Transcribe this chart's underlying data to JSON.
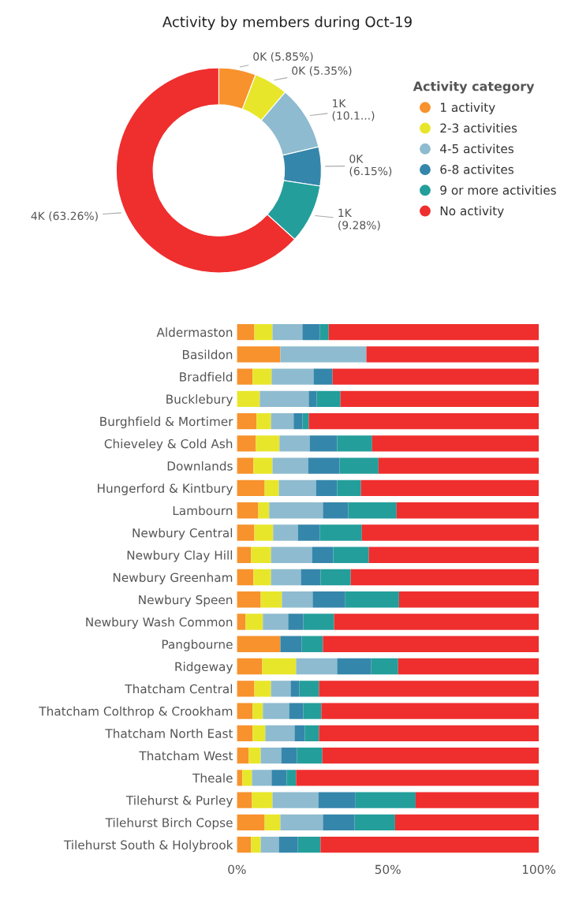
{
  "chart_data": [
    {
      "type": "donut",
      "title": "Activity by members during Oct-19",
      "legend_title": "Activity category",
      "legend": "right",
      "categories": [
        "1 activity",
        "2-3 activities",
        "4-5 activites",
        "6-8 activites",
        "9 or more activities",
        "No activity"
      ],
      "values": [
        5.85,
        5.35,
        10.11,
        6.15,
        9.28,
        63.26
      ],
      "colors": [
        "#f7922d",
        "#e8e62a",
        "#8ebbcf",
        "#3586ab",
        "#239e9b",
        "#ef2e2e"
      ],
      "value_labels": [
        "0K (5.85%)",
        "0K (5.35%)",
        "1K (10.1...)",
        "0K (6.15%)",
        "1K (9.28%)",
        "4K (63.26%)"
      ]
    },
    {
      "type": "bar",
      "orientation": "horizontal",
      "stacked": true,
      "categories": [
        "Aldermaston",
        "Basildon",
        "Bradfield",
        "Bucklebury",
        "Burghfield & Mortimer",
        "Chieveley & Cold Ash",
        "Downlands",
        "Hungerford & Kintbury",
        "Lambourn",
        "Newbury Central",
        "Newbury Clay Hill",
        "Newbury Greenham",
        "Newbury Speen",
        "Newbury Wash Common",
        "Pangbourne",
        "Ridgeway",
        "Thatcham Central",
        "Thatcham Colthrop & Crookham",
        "Thatcham North East",
        "Thatcham West",
        "Theale",
        "Tilehurst & Purley",
        "Tilehurst Birch Copse",
        "Tilehurst South & Holybrook"
      ],
      "xlim": [
        0,
        100
      ],
      "xticks": [
        {
          "value": 0,
          "label": "0%"
        },
        {
          "value": 50,
          "label": "50%"
        },
        {
          "value": 100,
          "label": "100%"
        }
      ],
      "series": [
        {
          "color": "#f7922d",
          "values": [
            5.8,
            14.4,
            5.2,
            0,
            6.5,
            6.3,
            5.5,
            9.2,
            7.1,
            5.8,
            4.7,
            5.5,
            7.9,
            2.9,
            14.4,
            8.4,
            5.8,
            5.2,
            5.2,
            3.9,
            1.8,
            5.0,
            9.2,
            4.7
          ]
        },
        {
          "color": "#e8e62a",
          "values": [
            6.0,
            0,
            6.3,
            7.6,
            4.8,
            7.8,
            6.3,
            4.7,
            3.6,
            6.2,
            6.6,
            5.8,
            7.0,
            5.7,
            0,
            11.2,
            5.5,
            3.4,
            4.2,
            4.0,
            3.2,
            6.8,
            5.2,
            3.2
          ]
        },
        {
          "color": "#8ebbcf",
          "values": [
            9.9,
            28.5,
            13.9,
            16.2,
            7.5,
            10.0,
            11.8,
            12.3,
            17.8,
            8.2,
            13.6,
            9.9,
            10.2,
            8.4,
            0,
            13.6,
            6.5,
            8.7,
            9.7,
            6.8,
            6.5,
            15.2,
            14.1,
            6.0
          ]
        },
        {
          "color": "#3586ab",
          "values": [
            5.8,
            0,
            6.3,
            2.6,
            2.9,
            9.1,
            10.4,
            7.0,
            8.4,
            7.3,
            7.0,
            6.5,
            10.8,
            5.0,
            7.1,
            11.3,
            2.9,
            4.7,
            3.4,
            5.2,
            5.0,
            12.3,
            10.5,
            6.3
          ]
        },
        {
          "color": "#239e9b",
          "values": [
            2.9,
            0,
            0,
            7.9,
            2.1,
            11.6,
            12.9,
            7.9,
            16.0,
            13.9,
            11.8,
            10.0,
            17.8,
            10.2,
            7.0,
            8.9,
            6.5,
            6.0,
            4.7,
            8.4,
            3.1,
            19.9,
            13.4,
            7.5
          ]
        },
        {
          "color": "#ef2e2e",
          "values": [
            69.6,
            57.1,
            68.3,
            65.7,
            76.2,
            55.2,
            53.1,
            58.9,
            47.1,
            58.6,
            56.3,
            62.3,
            46.3,
            67.8,
            71.5,
            46.6,
            72.8,
            72.0,
            72.8,
            71.7,
            80.4,
            40.8,
            47.6,
            72.3
          ]
        }
      ]
    }
  ]
}
